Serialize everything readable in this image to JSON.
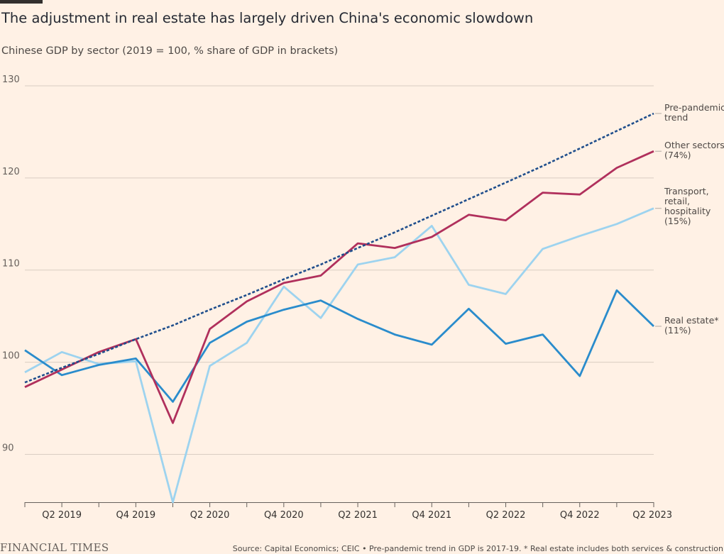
{
  "title": "The adjustment in real estate has largely driven China's economic slowdown",
  "subtitle": "Chinese GDP by sector (2019 = 100, % share of GDP in brackets)",
  "source": "Source: Capital Economics; CEIC • Pre-pandemic trend in GDP is 2017-19. * Real estate includes both services & construction",
  "logo": "FINANCIAL TIMES",
  "chart_data": {
    "type": "line",
    "x": [
      "Q1 2019",
      "Q2 2019",
      "Q3 2019",
      "Q4 2019",
      "Q1 2020",
      "Q2 2020",
      "Q3 2020",
      "Q4 2020",
      "Q1 2021",
      "Q2 2021",
      "Q3 2021",
      "Q4 2021",
      "Q1 2022",
      "Q2 2022",
      "Q3 2022",
      "Q4 2022",
      "Q1 2023",
      "Q2 2023"
    ],
    "xtick_labels": [
      "Q2 2019",
      "Q4 2019",
      "Q2 2020",
      "Q4 2020",
      "Q2 2021",
      "Q4 2021",
      "Q2 2022",
      "Q4 2022",
      "Q2 2023"
    ],
    "xtick_index": [
      1,
      3,
      5,
      7,
      9,
      11,
      13,
      15,
      17
    ],
    "yticks": [
      90,
      100,
      110,
      120,
      130
    ],
    "ylim": [
      84.8,
      130
    ],
    "grid": true,
    "series": [
      {
        "name_lines": [
          "Pre-pandemic",
          "trend"
        ],
        "color": "#1f4e8c",
        "dashed": true,
        "values": [
          97.8,
          99.4,
          100.9,
          102.5,
          104.0,
          105.7,
          107.3,
          109.0,
          110.6,
          112.4,
          114.1,
          115.9,
          117.7,
          119.5,
          121.3,
          123.2,
          125.1,
          127.0
        ]
      },
      {
        "name_lines": [
          "Other sectors",
          "(74%)"
        ],
        "color": "#b0305c",
        "values": [
          97.3,
          99.2,
          101.1,
          102.5,
          93.4,
          103.6,
          106.6,
          108.6,
          109.4,
          112.9,
          112.4,
          113.6,
          116.0,
          115.4,
          118.4,
          118.2,
          121.1,
          122.9
        ]
      },
      {
        "name_lines": [
          "Transport,",
          "retail,",
          "hospitality",
          "(15%)"
        ],
        "color": "#9dd3ef",
        "values": [
          98.9,
          101.1,
          99.8,
          100.1,
          84.8,
          99.6,
          102.1,
          108.2,
          104.8,
          110.6,
          111.4,
          114.8,
          108.4,
          107.4,
          112.3,
          113.7,
          115.0,
          116.7
        ]
      },
      {
        "name_lines": [
          "Real estate*",
          "(11%)"
        ],
        "color": "#2a8ccc",
        "values": [
          101.3,
          98.6,
          99.7,
          100.4,
          95.7,
          102.1,
          104.4,
          105.7,
          106.7,
          104.7,
          103.0,
          101.9,
          105.8,
          102.0,
          103.0,
          98.5,
          107.8,
          103.9
        ]
      }
    ]
  }
}
